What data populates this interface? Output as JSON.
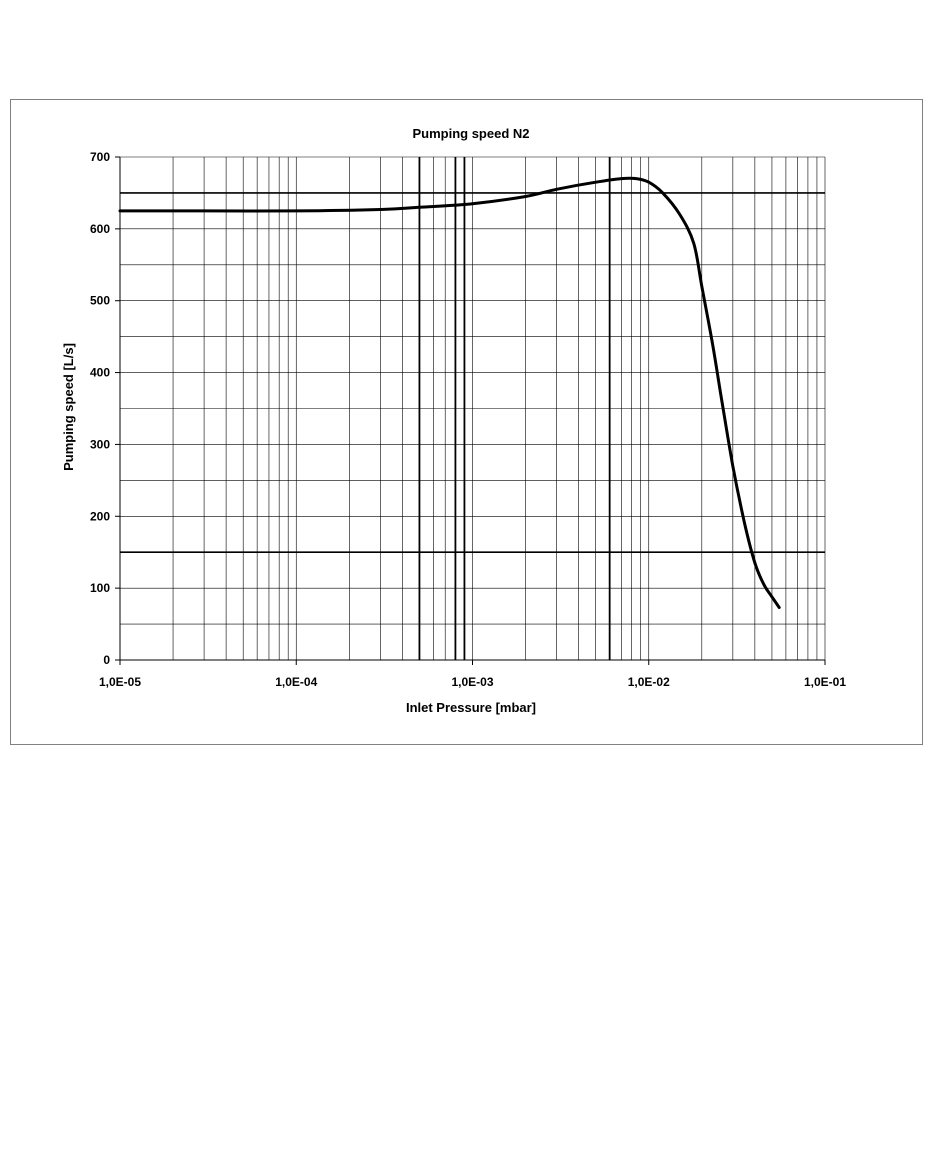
{
  "chart_data": {
    "type": "line",
    "title": "Pumping speed N2",
    "xlabel": "Inlet Pressure [mbar]",
    "ylabel": "Pumping speed [L/s]",
    "x_scale": "log",
    "xlim": [
      1e-05,
      0.1
    ],
    "ylim": [
      0,
      700
    ],
    "y_ticks": [
      0,
      100,
      200,
      300,
      400,
      500,
      600,
      700
    ],
    "y_tick_labels": [
      "0",
      "100",
      "200",
      "300",
      "400",
      "500",
      "600",
      "700"
    ],
    "x_ticks": [
      1e-05,
      0.0001,
      0.001,
      0.01,
      0.1
    ],
    "x_tick_labels": [
      "1,0E-05",
      "1,0E-04",
      "1,0E-03",
      "1,0E-02",
      "1,0E-01"
    ],
    "y_minor_gridlines": [
      50,
      150,
      250,
      350,
      450,
      550,
      650
    ],
    "emphasized_gridlines_y": [
      150,
      650
    ],
    "emphasized_gridlines_x": [
      0.0005,
      0.0008,
      0.0009,
      0.006
    ],
    "grid": true,
    "legend": "none",
    "line_color": "#000000",
    "series": [
      {
        "x": [
          1e-05,
          3e-05,
          0.0001,
          0.0003,
          0.0005,
          0.001,
          0.002,
          0.003,
          0.005,
          0.007,
          0.0085,
          0.01,
          0.012,
          0.015,
          0.018,
          0.02,
          0.023,
          0.026,
          0.03,
          0.035,
          0.04,
          0.045,
          0.05,
          0.055
        ],
        "y": [
          625,
          625,
          625,
          627,
          630,
          635,
          645,
          655,
          665,
          670,
          670,
          665,
          650,
          620,
          580,
          520,
          440,
          360,
          270,
          190,
          135,
          105,
          88,
          73
        ]
      }
    ]
  }
}
